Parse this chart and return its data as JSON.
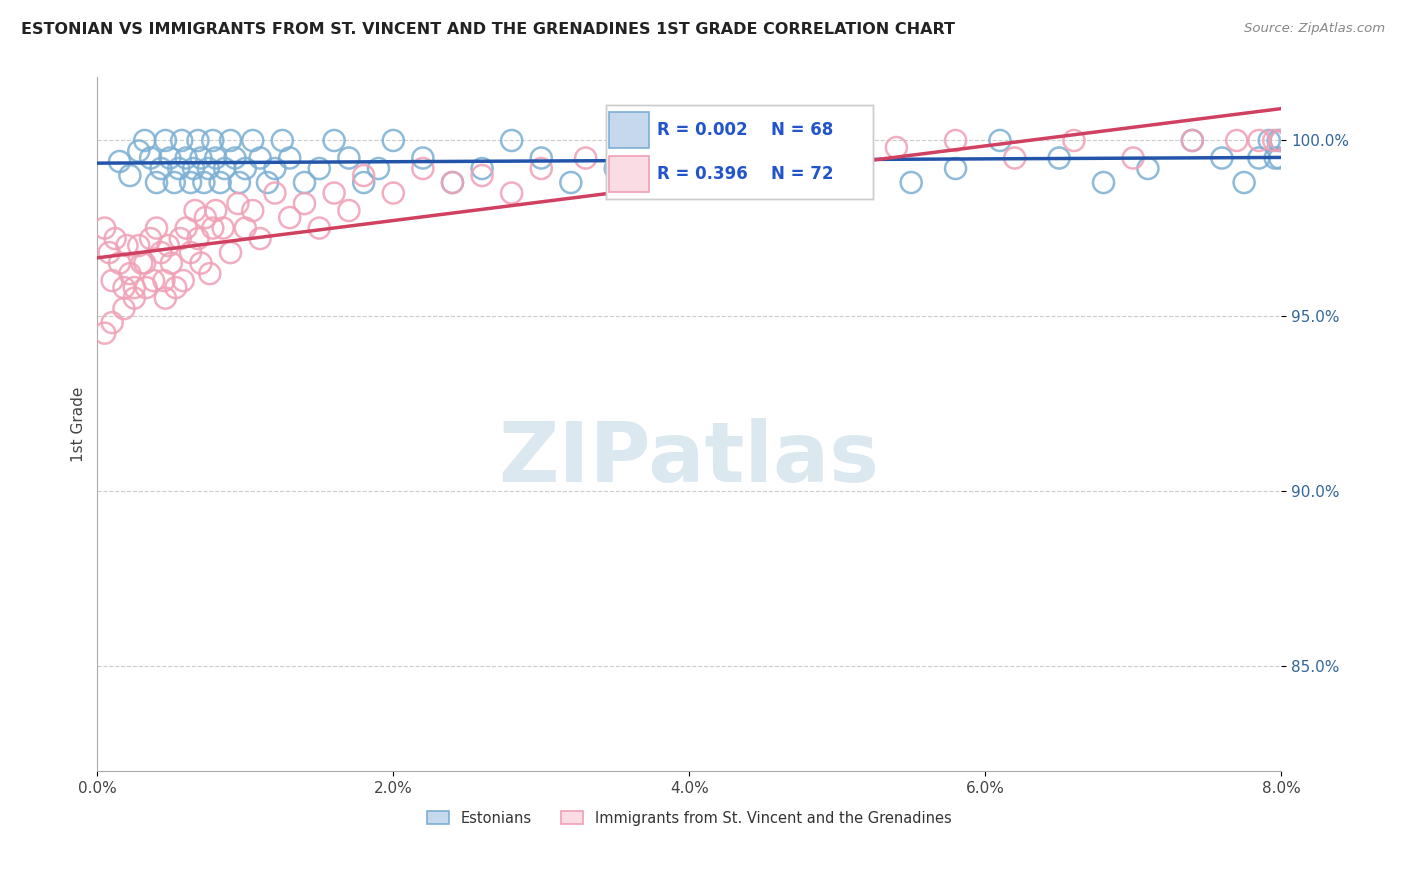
{
  "title": "ESTONIAN VS IMMIGRANTS FROM ST. VINCENT AND THE GRENADINES 1ST GRADE CORRELATION CHART",
  "source_text": "Source: ZipAtlas.com",
  "ylabel": "1st Grade",
  "x_tick_labels": [
    "0.0%",
    "2.0%",
    "4.0%",
    "6.0%",
    "8.0%"
  ],
  "x_tick_positions": [
    0.0,
    2.0,
    4.0,
    6.0,
    8.0
  ],
  "y_tick_labels": [
    "85.0%",
    "90.0%",
    "95.0%",
    "100.0%"
  ],
  "y_tick_positions": [
    85.0,
    90.0,
    95.0,
    100.0
  ],
  "xlim": [
    0.0,
    8.0
  ],
  "ylim": [
    82.0,
    101.8
  ],
  "legend_labels": [
    "Estonians",
    "Immigrants from St. Vincent and the Grenadines"
  ],
  "legend_r_values": [
    "R = 0.002",
    "R = 0.396"
  ],
  "legend_n_values": [
    "N = 68",
    "N = 72"
  ],
  "blue_color": "#7bafd4",
  "pink_color": "#f0a0b5",
  "blue_line_color": "#2255aa",
  "pink_line_color": "#d04060",
  "legend_text_color": "#2255cc",
  "watermark_color": "#dce8f0",
  "background_color": "#ffffff",
  "blue_dots_x": [
    0.15,
    0.22,
    0.28,
    0.32,
    0.36,
    0.4,
    0.43,
    0.46,
    0.49,
    0.52,
    0.55,
    0.57,
    0.6,
    0.63,
    0.65,
    0.68,
    0.7,
    0.72,
    0.75,
    0.78,
    0.8,
    0.83,
    0.86,
    0.9,
    0.93,
    0.96,
    1.0,
    1.05,
    1.1,
    1.15,
    1.2,
    1.25,
    1.3,
    1.4,
    1.5,
    1.6,
    1.7,
    1.8,
    1.9,
    2.0,
    2.2,
    2.4,
    2.6,
    2.8,
    3.0,
    3.2,
    3.5,
    3.8,
    4.0,
    4.2,
    4.5,
    4.8,
    5.1,
    5.5,
    5.8,
    6.1,
    6.5,
    6.8,
    7.1,
    7.4,
    7.6,
    7.75,
    7.85,
    7.92,
    7.96,
    7.98,
    7.99,
    8.0
  ],
  "blue_dots_y": [
    99.4,
    99.0,
    99.7,
    100.0,
    99.5,
    98.8,
    99.2,
    100.0,
    99.5,
    98.8,
    99.2,
    100.0,
    99.5,
    98.8,
    99.2,
    100.0,
    99.5,
    98.8,
    99.2,
    100.0,
    99.5,
    98.8,
    99.2,
    100.0,
    99.5,
    98.8,
    99.2,
    100.0,
    99.5,
    98.8,
    99.2,
    100.0,
    99.5,
    98.8,
    99.2,
    100.0,
    99.5,
    98.8,
    99.2,
    100.0,
    99.5,
    98.8,
    99.2,
    100.0,
    99.5,
    98.8,
    99.2,
    100.0,
    99.5,
    98.8,
    99.2,
    100.0,
    99.5,
    98.8,
    99.2,
    100.0,
    99.5,
    98.8,
    99.2,
    100.0,
    99.5,
    98.8,
    99.5,
    100.0,
    99.5,
    100.0,
    99.5,
    100.0
  ],
  "pink_dots_x": [
    0.05,
    0.08,
    0.1,
    0.12,
    0.15,
    0.18,
    0.2,
    0.22,
    0.25,
    0.28,
    0.3,
    0.33,
    0.36,
    0.38,
    0.4,
    0.43,
    0.46,
    0.48,
    0.5,
    0.53,
    0.56,
    0.58,
    0.6,
    0.63,
    0.66,
    0.68,
    0.7,
    0.73,
    0.76,
    0.78,
    0.8,
    0.85,
    0.9,
    0.95,
    1.0,
    1.05,
    1.1,
    1.2,
    1.3,
    1.4,
    1.5,
    1.6,
    1.7,
    1.8,
    2.0,
    2.2,
    2.4,
    2.6,
    2.8,
    3.0,
    3.3,
    3.6,
    3.9,
    4.2,
    4.6,
    5.0,
    5.4,
    5.8,
    6.2,
    6.6,
    7.0,
    7.4,
    7.7,
    7.85,
    7.95,
    8.0,
    0.1,
    0.18,
    0.05,
    0.25,
    0.32,
    0.45
  ],
  "pink_dots_y": [
    97.5,
    96.8,
    96.0,
    97.2,
    96.5,
    95.8,
    97.0,
    96.2,
    95.5,
    97.0,
    96.5,
    95.8,
    97.2,
    96.0,
    97.5,
    96.8,
    95.5,
    97.0,
    96.5,
    95.8,
    97.2,
    96.0,
    97.5,
    96.8,
    98.0,
    97.2,
    96.5,
    97.8,
    96.2,
    97.5,
    98.0,
    97.5,
    96.8,
    98.2,
    97.5,
    98.0,
    97.2,
    98.5,
    97.8,
    98.2,
    97.5,
    98.5,
    98.0,
    99.0,
    98.5,
    99.2,
    98.8,
    99.0,
    98.5,
    99.2,
    99.5,
    99.0,
    99.5,
    99.8,
    100.0,
    99.5,
    99.8,
    100.0,
    99.5,
    100.0,
    99.5,
    100.0,
    100.0,
    100.0,
    100.0,
    100.0,
    94.8,
    95.2,
    94.5,
    95.8,
    96.5,
    96.0
  ]
}
